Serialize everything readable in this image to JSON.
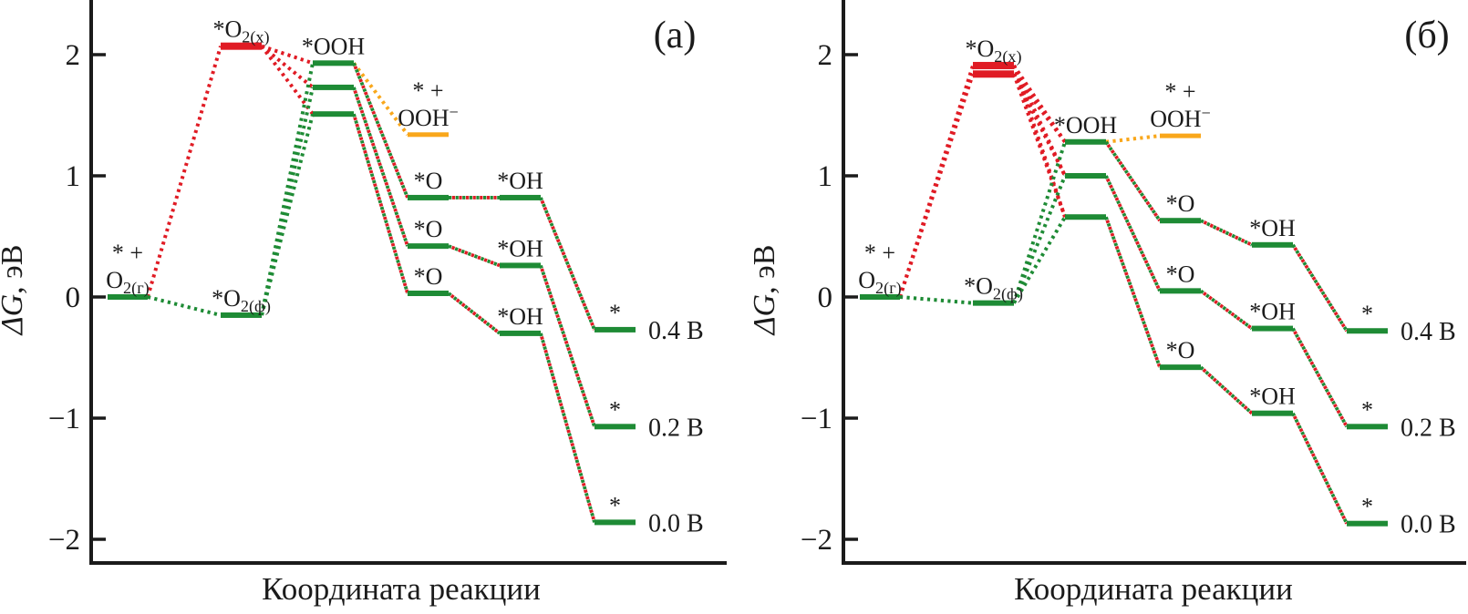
{
  "chart_data": [
    {
      "type": "energy_level_diagram",
      "panel_tag": "(а)",
      "xlabel": "Координата реакции",
      "ylabel": "_ΔG_, эВ",
      "yticks": [
        2,
        1,
        0,
        -1,
        -2
      ],
      "ylim": [
        -2.3,
        2.45
      ],
      "colors": {
        "red": "#e01b24",
        "green": "#1e8b35",
        "orange": "#f9a71b",
        "axis": "#1b1b1b"
      },
      "levels": [
        {
          "key": "initial",
          "station": 0,
          "color": "green",
          "label_lines": [
            "* +",
            "O~2(г)~"
          ],
          "G": [
            0.0
          ]
        },
        {
          "key": "O2_phys",
          "station": 1,
          "color": "green",
          "label_lines": [
            "*O~2(ф)~"
          ],
          "G": [
            -0.15
          ]
        },
        {
          "key": "O2_chem",
          "station": 1,
          "color": "red",
          "label_lines": [
            "*O~2(x)~"
          ],
          "G": [
            2.07
          ]
        },
        {
          "key": "OOH",
          "station": 2,
          "color": "green",
          "label_lines": [
            "*OOH"
          ],
          "G": [
            1.93,
            1.73,
            1.51
          ]
        },
        {
          "key": "OOH_anion",
          "station": 3,
          "color": "orange",
          "label_lines": [
            "* +",
            "OOH^−^"
          ],
          "G": [
            1.34
          ]
        },
        {
          "key": "O",
          "station": 3,
          "color": "green",
          "label_lines": [
            "*O"
          ],
          "label_each": true,
          "G": [
            0.82,
            0.42,
            0.03
          ]
        },
        {
          "key": "OH",
          "station": 4,
          "color": "green",
          "label_lines": [
            "*OH"
          ],
          "label_each": true,
          "G": [
            0.82,
            0.26,
            -0.3
          ]
        },
        {
          "key": "final",
          "station": 5,
          "color": "green",
          "label_lines": [
            "*"
          ],
          "label_each": true,
          "G": [
            -0.27,
            -1.07,
            -1.86
          ],
          "right_labels": [
            "0.4 В",
            "0.2 В",
            "0.0 В"
          ]
        }
      ],
      "connections": [
        {
          "from": "initial",
          "to": "O2_chem",
          "style": "red",
          "fan": "all"
        },
        {
          "from": "initial",
          "to": "O2_phys",
          "style": "green",
          "fan": "all"
        },
        {
          "from": "O2_chem",
          "to": "OOH",
          "style": "red",
          "fan": "all"
        },
        {
          "from": "O2_phys",
          "to": "OOH",
          "style": "green",
          "fan": "all"
        },
        {
          "from": "OOH",
          "to": "OOH_anion",
          "style": "orange",
          "from_index": 0
        },
        {
          "from": "OOH",
          "to": "O",
          "style": "mixed",
          "pairwise": true
        },
        {
          "from": "O",
          "to": "OH",
          "style": "mixed",
          "pairwise": true
        },
        {
          "from": "OH",
          "to": "final",
          "style": "mixed",
          "pairwise": true
        }
      ]
    },
    {
      "type": "energy_level_diagram",
      "panel_tag": "(б)",
      "xlabel": "Координата реакции",
      "ylabel": "_ΔG_, эВ",
      "yticks": [
        2,
        1,
        0,
        -1,
        -2
      ],
      "ylim": [
        -2.3,
        2.45
      ],
      "colors": {
        "red": "#e01b24",
        "green": "#1e8b35",
        "orange": "#f9a71b",
        "axis": "#1b1b1b"
      },
      "levels": [
        {
          "key": "initial",
          "station": 0,
          "color": "green",
          "label_lines": [
            "* +",
            "O~2(г)~"
          ],
          "G": [
            0.0
          ]
        },
        {
          "key": "O2_phys",
          "station": 1,
          "color": "green",
          "label_lines": [
            "*O~2(ф)~"
          ],
          "G": [
            -0.05
          ]
        },
        {
          "key": "O2_chem",
          "station": 1,
          "color": "red",
          "label_lines": [
            "*O~2(x)~"
          ],
          "G": [
            1.91,
            1.84
          ]
        },
        {
          "key": "OOH",
          "station": 2,
          "color": "green",
          "label_lines": [
            "*OOH"
          ],
          "G": [
            1.28,
            1.0,
            0.66
          ]
        },
        {
          "key": "OOH_anion",
          "station": 3,
          "color": "orange",
          "label_lines": [
            "* +",
            "OOH^−^"
          ],
          "G": [
            1.33
          ]
        },
        {
          "key": "O",
          "station": 3,
          "color": "green",
          "label_lines": [
            "*O"
          ],
          "label_each": true,
          "G": [
            0.63,
            0.05,
            -0.58
          ]
        },
        {
          "key": "OH",
          "station": 4,
          "color": "green",
          "label_lines": [
            "*OH"
          ],
          "label_each": true,
          "G": [
            0.43,
            -0.26,
            -0.96
          ]
        },
        {
          "key": "final",
          "station": 5,
          "color": "green",
          "label_lines": [
            "*"
          ],
          "label_each": true,
          "G": [
            -0.28,
            -1.07,
            -1.87
          ],
          "right_labels": [
            "0.4 В",
            "0.2 В",
            "0.0 В"
          ]
        }
      ],
      "connections": [
        {
          "from": "initial",
          "to": "O2_chem",
          "style": "red",
          "fan": "all"
        },
        {
          "from": "initial",
          "to": "O2_phys",
          "style": "green",
          "fan": "all"
        },
        {
          "from": "O2_chem",
          "to": "OOH",
          "style": "red",
          "fan": "all"
        },
        {
          "from": "O2_phys",
          "to": "OOH",
          "style": "green",
          "fan": "all"
        },
        {
          "from": "OOH",
          "to": "OOH_anion",
          "style": "orange",
          "from_index": 0
        },
        {
          "from": "OOH",
          "to": "O",
          "style": "mixed",
          "pairwise": true
        },
        {
          "from": "O",
          "to": "OH",
          "style": "mixed",
          "pairwise": true
        },
        {
          "from": "OH",
          "to": "final",
          "style": "mixed",
          "pairwise": true
        }
      ]
    }
  ]
}
